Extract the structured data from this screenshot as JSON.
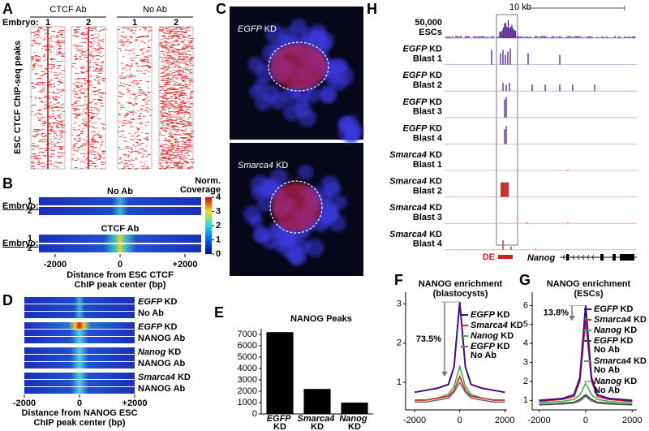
{
  "panels": {
    "A": {
      "letter": "A",
      "embryo_label": "Embryo:",
      "groups": [
        {
          "name": "CTCF Ab",
          "embryos": [
            "1",
            "2"
          ]
        },
        {
          "name": "No Ab",
          "embryos": [
            "1",
            "2"
          ]
        }
      ],
      "y_label": "ESC CTCF ChIP-seq peaks"
    },
    "B": {
      "letter": "B",
      "colorbar_title": [
        "Norm.",
        "Coverage"
      ],
      "colorbar_lim": [
        0,
        4
      ],
      "colorbar_ticks": [
        0,
        1,
        2,
        3,
        4
      ],
      "groups": [
        {
          "name": "No Ab",
          "embryo_label": "Embryo:",
          "rows": [
            "1",
            "2"
          ]
        },
        {
          "name": "CTCF Ab",
          "embryo_label": "Embryo:",
          "rows": [
            "1",
            "2"
          ]
        }
      ],
      "xlim": [
        -2500,
        2500
      ],
      "xticks": [
        -2000,
        0,
        {
          "value": 2000,
          "label": "+2000"
        }
      ],
      "xlabel": [
        "Distance from ESC CTCF",
        "ChIP peak center (bp)"
      ]
    },
    "C": {
      "letter": "C",
      "images": [
        "EGFP KD",
        "Smarca4 KD"
      ]
    },
    "D": {
      "letter": "D",
      "groups": [
        [
          "EGFP KD",
          "No Ab"
        ],
        [
          "EGFP KD",
          "NANOG Ab"
        ],
        [
          "Nanog KD",
          "NANOG Ab"
        ],
        [
          "Smarca4 KD",
          "NANOG Ab"
        ]
      ],
      "xlim": [
        -2000,
        2000
      ],
      "xticks": [
        -2000,
        0,
        {
          "value": 2000,
          "label": "+2000"
        }
      ],
      "xlabel": [
        "Distance from NANOG ESC",
        "ChIP peak center (bp)"
      ]
    },
    "H": {
      "letter": "H",
      "scale": "10 kb",
      "tracks": [
        [
          "50,000",
          "ESCs"
        ],
        [
          "EGFP KD",
          "Blast 1"
        ],
        [
          "EGFP KD",
          "Blast 2"
        ],
        [
          "EGFP KD",
          "Blast 3"
        ],
        [
          "EGFP KD",
          "Blast 4"
        ],
        [
          "Smarca4 KD",
          "Blast 1"
        ],
        [
          "Smarca4 KD",
          "Blast 2"
        ],
        [
          "Smarca4 KD",
          "Blast 3"
        ],
        [
          "Smarca4 KD",
          "Blast 4"
        ]
      ],
      "region": "DE",
      "gene": "Nanog"
    }
  },
  "chart_data": [
    {
      "type": "bar",
      "letter": "E",
      "title": "NANOG Peaks",
      "categories": [
        "EGFP KD",
        "Smarca4 KD",
        "Nanog KD"
      ],
      "values": [
        7200,
        2200,
        1000
      ],
      "color": "#000000",
      "ylim": [
        0,
        7500
      ],
      "yticks": [
        0,
        1000,
        2000,
        3000,
        4000,
        5000,
        6000,
        7000
      ]
    },
    {
      "type": "line",
      "letter": "F",
      "title": [
        "NANOG enrichment",
        "(blastocysts)"
      ],
      "x": [
        -2000,
        -1500,
        -1000,
        -500,
        -250,
        0,
        250,
        500,
        1000,
        1500,
        2000
      ],
      "xlim": [
        -2400,
        2100
      ],
      "xticks": [
        -2000,
        0,
        2000
      ],
      "ylim": [
        0.3,
        3.3
      ],
      "yticks": [
        1,
        2,
        3
      ],
      "annotation": "73.5%",
      "series": [
        {
          "name": "EGFP KD",
          "color": "#3d0a91",
          "values": [
            0.75,
            0.8,
            0.85,
            0.95,
            1.4,
            3.05,
            1.4,
            0.95,
            0.85,
            0.8,
            0.75
          ]
        },
        {
          "name": "Smarca4 KD",
          "color": "#e02020",
          "values": [
            0.55,
            0.55,
            0.6,
            0.65,
            0.8,
            1.15,
            0.8,
            0.65,
            0.6,
            0.55,
            0.55
          ]
        },
        {
          "name": "Nanog KD",
          "color": "#3cb043",
          "values": [
            0.55,
            0.55,
            0.6,
            0.7,
            0.9,
            1.4,
            0.9,
            0.7,
            0.6,
            0.55,
            0.55
          ]
        },
        {
          "name": "EGFP KD No Ab",
          "color": "#707070",
          "values": [
            0.5,
            0.5,
            0.55,
            0.6,
            0.75,
            1.0,
            0.75,
            0.6,
            0.55,
            0.5,
            0.5
          ]
        }
      ]
    },
    {
      "type": "line",
      "letter": "G",
      "title": [
        "NANOG enrichment",
        "(ESCs)"
      ],
      "x": [
        -2000,
        -1500,
        -1000,
        -500,
        -250,
        0,
        250,
        500,
        1000,
        1500,
        2000
      ],
      "xlim": [
        -2300,
        2200
      ],
      "xticks": [
        -2000,
        0,
        2000
      ],
      "ylim": [
        0.5,
        6.7
      ],
      "yticks": [
        1,
        2,
        3,
        4,
        5,
        6
      ],
      "annotation": "13.8%",
      "series": [
        {
          "name": "EGFP KD",
          "color": "#3d0a91",
          "values": [
            1.0,
            1.05,
            1.1,
            1.3,
            2.2,
            6.0,
            2.2,
            1.3,
            1.1,
            1.05,
            1.0
          ]
        },
        {
          "name": "Smarca4 KD",
          "color": "#e02020",
          "values": [
            0.95,
            1.0,
            1.05,
            1.2,
            2.0,
            5.2,
            2.0,
            1.2,
            1.05,
            1.0,
            0.95
          ]
        },
        {
          "name": "Nanog KD",
          "color": "#3cb043",
          "values": [
            0.9,
            0.9,
            0.95,
            1.05,
            1.3,
            1.9,
            1.3,
            1.05,
            0.95,
            0.9,
            0.9
          ]
        },
        {
          "name": "EGFP KD No Ab",
          "color": "#404040",
          "values": [
            0.8,
            0.8,
            0.85,
            0.9,
            1.05,
            1.3,
            1.05,
            0.9,
            0.85,
            0.8,
            0.8
          ]
        },
        {
          "name": "Smarca4 KD No Ab",
          "color": "#7a7a7a",
          "values": [
            0.78,
            0.8,
            0.82,
            0.88,
            1.0,
            1.25,
            1.0,
            0.88,
            0.82,
            0.8,
            0.78
          ]
        },
        {
          "name": "Nanog KD No Ab",
          "color": "#a8a8a8",
          "values": [
            0.75,
            0.78,
            0.8,
            0.85,
            0.95,
            1.2,
            0.95,
            0.85,
            0.8,
            0.78,
            0.75
          ]
        }
      ]
    }
  ]
}
